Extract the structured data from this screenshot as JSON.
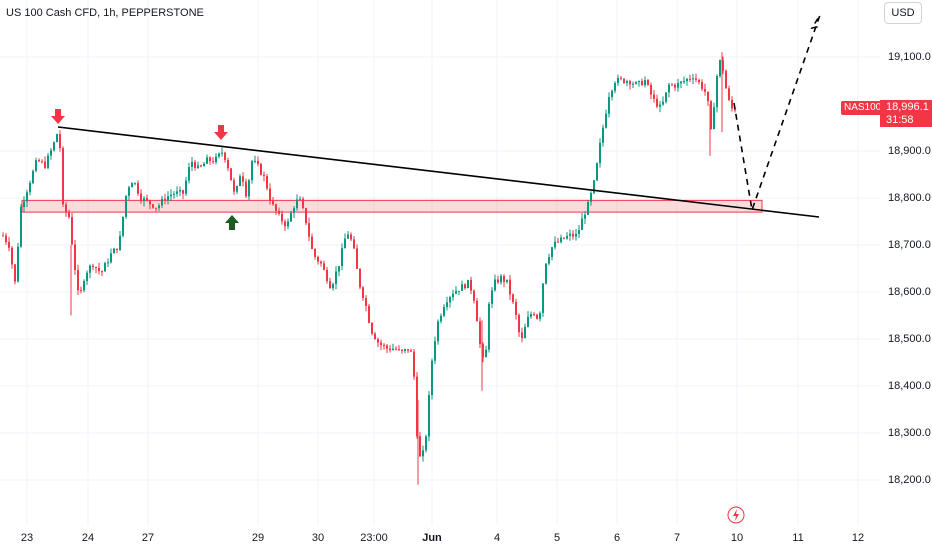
{
  "symbol": {
    "title": "US 100 Cash CFD, 1h, PEPPERSTONE",
    "short_name": "NAS100",
    "last_price": "18,996.1",
    "countdown": "31:58"
  },
  "currency_button": "USD",
  "price_axis": {
    "ticks": [
      "19,100.0",
      "18,900.0",
      "18,800.0",
      "18,700.0",
      "18,600.0",
      "18,500.0",
      "18,400.0",
      "18,300.0",
      "18,200.0"
    ]
  },
  "time_axis": {
    "ticks": [
      "23",
      "24",
      "27",
      "29",
      "30",
      "23:00",
      "Jun",
      "4",
      "5",
      "6",
      "7",
      "10",
      "11",
      "12"
    ]
  },
  "colors": {
    "up": "#089981",
    "down": "#f23645",
    "trendline": "#000000",
    "zone": "#f23645",
    "arrow_down": "#f23645",
    "arrow_up": "#1b5e20",
    "grid": "#f0f3fa"
  },
  "icons": {
    "lightning": "lightning-icon"
  }
}
